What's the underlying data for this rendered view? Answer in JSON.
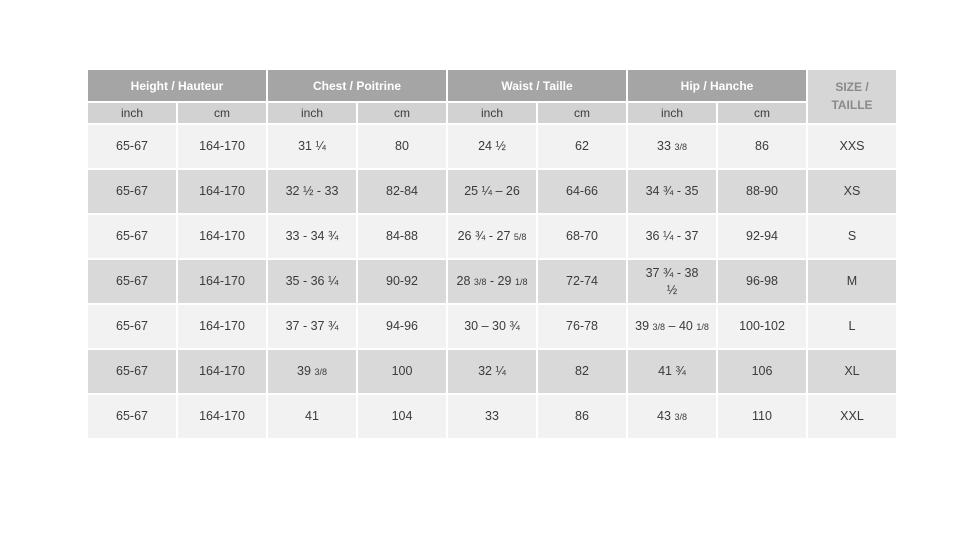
{
  "colors": {
    "page_bg": "#ffffff",
    "header_bg": "#a5a5a5",
    "header_text": "#ffffff",
    "units_row_bg": "#d2d2d2",
    "size_header_bg": "#d6d6d6",
    "size_header_text": "#8a8a8a",
    "row_light": "#f2f2f2",
    "row_dark": "#d9d9d9",
    "cell_text": "#3b3b3b"
  },
  "chart_data": {
    "type": "table",
    "title": "",
    "column_groups": [
      {
        "label": "Height / Hauteur",
        "units": [
          "inch",
          "cm"
        ]
      },
      {
        "label": "Chest / Poitrine",
        "units": [
          "inch",
          "cm"
        ]
      },
      {
        "label": "Waist / Taille",
        "units": [
          "inch",
          "cm"
        ]
      },
      {
        "label": "Hip / Hanche",
        "units": [
          "inch",
          "cm"
        ]
      }
    ],
    "size_column": {
      "line1": "SIZE /",
      "line2": "TAILLE"
    },
    "rows": [
      {
        "height_inch": "65-67",
        "height_cm": "164-170",
        "chest_inch": "31 ¼",
        "chest_cm": "80",
        "waist_inch": "24 ½",
        "waist_cm": "62",
        "hip_inch": "33 [3/8]",
        "hip_cm": "86",
        "size": "XXS"
      },
      {
        "height_inch": "65-67",
        "height_cm": "164-170",
        "chest_inch": "32 ½ - 33",
        "chest_cm": "82-84",
        "waist_inch": "25 ¼ – 26",
        "waist_cm": "64-66",
        "hip_inch": "34 ¾  - 35",
        "hip_cm": "88-90",
        "size": "XS"
      },
      {
        "height_inch": "65-67",
        "height_cm": "164-170",
        "chest_inch": "33 - 34 ¾",
        "chest_cm": "84-88",
        "waist_inch": "26 ¾  - 27 [5/8]",
        "waist_cm": "68-70",
        "hip_inch": "36 ¼  - 37",
        "hip_cm": "92-94",
        "size": "S"
      },
      {
        "height_inch": "65-67",
        "height_cm": "164-170",
        "chest_inch": "35 - 36 ¼",
        "chest_cm": "90-92",
        "waist_inch": "28 [3/8] - 29 [1/8]",
        "waist_cm": "72-74",
        "hip_inch": "37 ¾  -  38\n½",
        "hip_cm": "96-98",
        "size": "M"
      },
      {
        "height_inch": "65-67",
        "height_cm": "164-170",
        "chest_inch": "37 - 37 ¾",
        "chest_cm": "94-96",
        "waist_inch": "30 – 30 ¾",
        "waist_cm": "76-78",
        "hip_inch": "39 [3/8] – 40 [1/8]",
        "hip_cm": "100-102",
        "size": "L"
      },
      {
        "height_inch": "65-67",
        "height_cm": "164-170",
        "chest_inch": "39 [3/8]",
        "chest_cm": "100",
        "waist_inch": "32 ¼",
        "waist_cm": "82",
        "hip_inch": "41 ¾",
        "hip_cm": "106",
        "size": "XL"
      },
      {
        "height_inch": "65-67",
        "height_cm": "164-170",
        "chest_inch": "41",
        "chest_cm": "104",
        "waist_inch": "33",
        "waist_cm": "86",
        "hip_inch": "43 [3/8]",
        "hip_cm": "110",
        "size": "XXL"
      }
    ]
  }
}
